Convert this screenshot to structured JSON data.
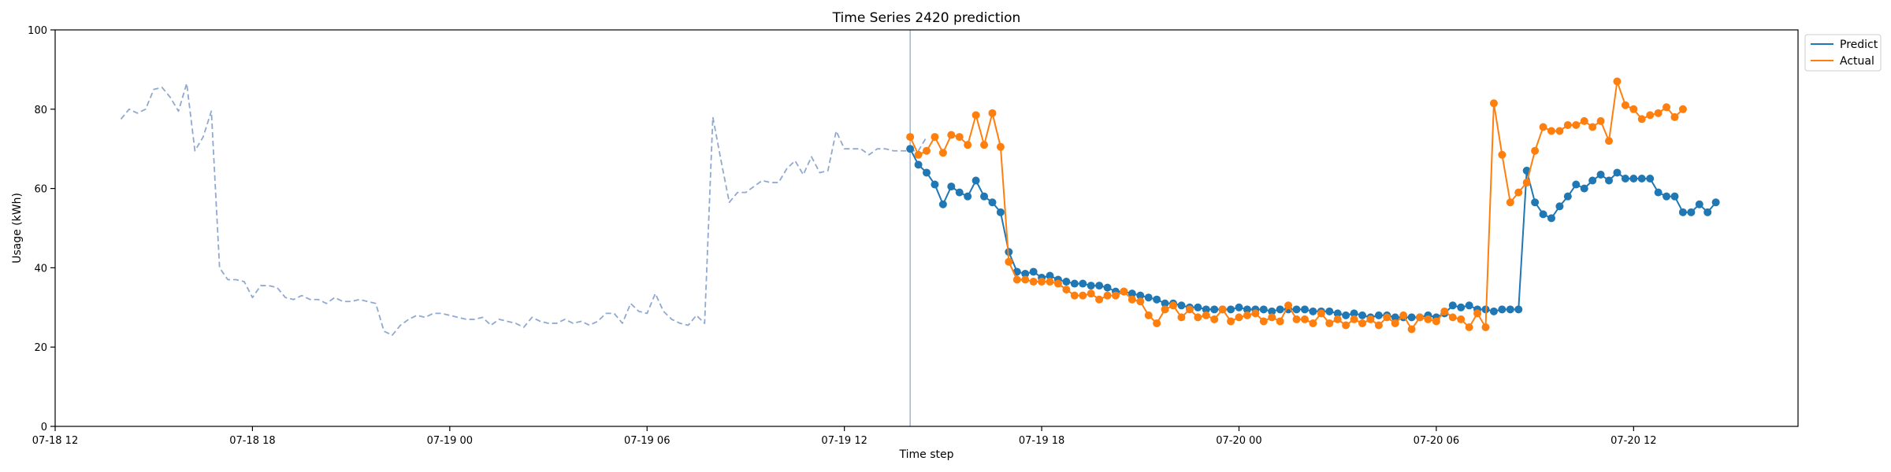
{
  "chart_data": {
    "type": "line",
    "title": "Time Series 2420 prediction",
    "xlabel": "Time step",
    "ylabel": "Usage (kWh)",
    "xlim": [
      "2024-07-18T12:00",
      "2024-07-20T17:00"
    ],
    "ylim": [
      0,
      100
    ],
    "x_ticks": [
      {
        "t": "2024-07-18T12:00",
        "label": "07-18 12"
      },
      {
        "t": "2024-07-18T18:00",
        "label": "07-18 18"
      },
      {
        "t": "2024-07-19T00:00",
        "label": "07-19 00"
      },
      {
        "t": "2024-07-19T06:00",
        "label": "07-19 06"
      },
      {
        "t": "2024-07-19T12:00",
        "label": "07-19 12"
      },
      {
        "t": "2024-07-19T18:00",
        "label": "07-19 18"
      },
      {
        "t": "2024-07-20T00:00",
        "label": "07-20 00"
      },
      {
        "t": "2024-07-20T06:00",
        "label": "07-20 06"
      },
      {
        "t": "2024-07-20T12:00",
        "label": "07-20 12"
      }
    ],
    "y_ticks": [
      0,
      20,
      40,
      60,
      80,
      100
    ],
    "legend_position": "upper-right-outside",
    "grid": false,
    "forecast_start": "2024-07-19T14:00",
    "series": [
      {
        "name": "",
        "style": "dashed",
        "color": "#8fa9cf",
        "start": "2024-07-18T14:00",
        "step_minutes": 15,
        "values": [
          77.5,
          80,
          79,
          80,
          85,
          85.5,
          83,
          79.5,
          86.5,
          69.5,
          73,
          79.5,
          40,
          37,
          37,
          36.5,
          32.5,
          35.5,
          35.5,
          35,
          32.5,
          32,
          33,
          32,
          32,
          31,
          32.5,
          31.5,
          31.5,
          32,
          31.5,
          31,
          24,
          23,
          25.5,
          27,
          28,
          27.5,
          28.5,
          28.5,
          28,
          27.5,
          27,
          27,
          27.5,
          25.5,
          27,
          26.5,
          26,
          25,
          27.5,
          26.5,
          26,
          26,
          27,
          26,
          26.5,
          25.5,
          26.5,
          28.5,
          28.5,
          26,
          31,
          29,
          28.5,
          33.5,
          29,
          27,
          26,
          25.5,
          28,
          26,
          78,
          67,
          56.5,
          59,
          59,
          60.5,
          62,
          61.5,
          61.5,
          65,
          67,
          63.5,
          68,
          64,
          64.5,
          74.5,
          70,
          70,
          70,
          68.5,
          70,
          70,
          69.5,
          69.5,
          69.5,
          69.5,
          73
        ]
      },
      {
        "name": "Predict",
        "style": "solid-markers",
        "color": "#1f77b4",
        "start": "2024-07-19T14:00",
        "step_minutes": 15,
        "values": [
          70,
          66,
          64,
          61,
          56,
          60.5,
          59,
          58,
          62,
          58,
          56.5,
          54,
          44,
          39,
          38.5,
          39,
          37.5,
          38,
          37,
          36.5,
          36,
          36,
          35.5,
          35.5,
          35,
          34,
          34,
          33.5,
          33,
          32.5,
          32,
          31,
          31,
          30.5,
          30,
          30,
          29.5,
          29.5,
          29.5,
          29.5,
          30,
          29.5,
          29.5,
          29.5,
          29,
          29.5,
          29.5,
          29.5,
          29.5,
          29,
          29,
          29,
          28.5,
          28,
          28.5,
          28,
          27.5,
          28,
          28,
          27.5,
          27.5,
          27.5,
          27.5,
          28,
          27.5,
          28.5,
          30.5,
          30,
          30.5,
          29.5,
          29.5,
          29,
          29.5,
          29.5,
          29.5,
          64.5,
          56.5,
          53.5,
          52.5,
          55.5,
          58,
          61,
          60,
          62,
          63.5,
          62,
          64,
          62.5,
          62.5,
          62.5,
          62.5,
          59,
          58,
          58,
          54,
          54,
          56,
          54,
          56.5
        ]
      },
      {
        "name": "Actual",
        "style": "solid-markers",
        "color": "#ff7f0e",
        "start": "2024-07-19T14:00",
        "step_minutes": 15,
        "values": [
          73,
          68.5,
          69.5,
          73,
          69,
          73.5,
          73,
          71,
          78.5,
          71,
          79,
          70.5,
          41.5,
          37,
          37,
          36.5,
          36.5,
          36.5,
          36,
          34.5,
          33,
          33,
          33.5,
          32,
          33,
          33,
          34,
          32,
          31.5,
          28,
          26,
          29.5,
          30.5,
          27.5,
          29.5,
          27.5,
          28,
          27,
          29.5,
          26.5,
          27.5,
          28,
          28.5,
          26.5,
          27.5,
          26.5,
          30.5,
          27,
          27,
          26,
          28.5,
          26,
          27,
          25.5,
          27,
          26,
          27,
          25.5,
          27.5,
          26,
          28,
          24.5,
          27.5,
          27,
          26.5,
          29,
          27.5,
          27,
          25,
          28.5,
          25,
          81.5,
          68.5,
          56.5,
          59,
          61.5,
          69.5,
          75.5,
          74.5,
          74.5,
          76,
          76,
          77,
          75.5,
          77,
          72,
          87,
          81,
          80,
          77.5,
          78.5,
          79,
          80.5,
          78,
          80
        ]
      }
    ]
  }
}
